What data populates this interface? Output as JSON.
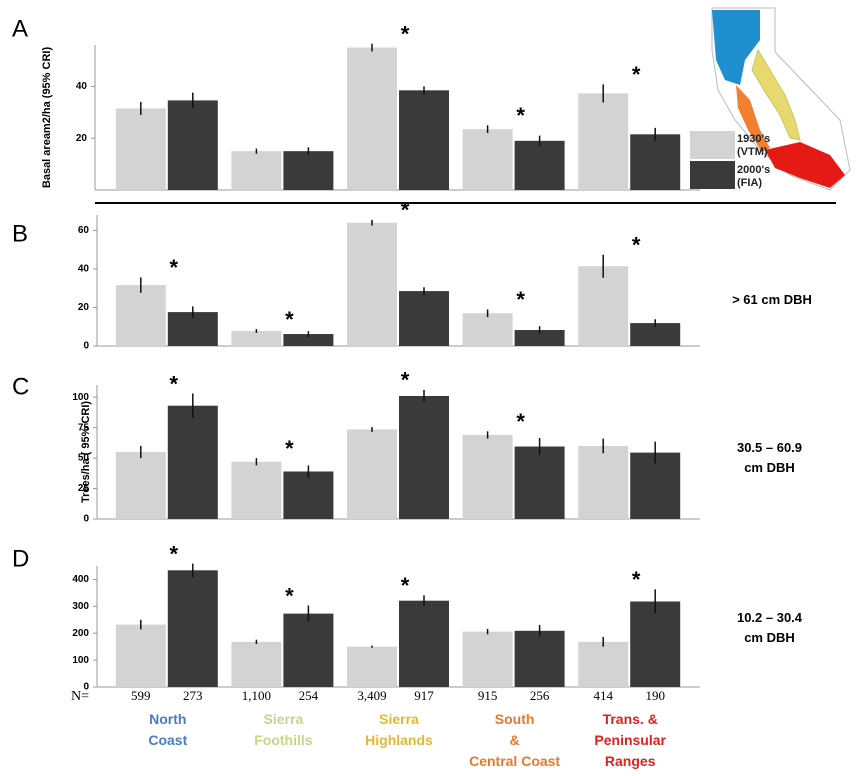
{
  "chart_data": [
    {
      "type": "bar",
      "panel": "A",
      "ylabel": "Basal aream2/ha (95% CRI)",
      "ylim": [
        0,
        56
      ],
      "yticks": [
        20,
        40
      ],
      "grid": false,
      "series": [
        {
          "name": "1930's (VTM)",
          "color": "#d3d3d3",
          "values": [
            31.5,
            15,
            55,
            23.5,
            37.3
          ],
          "errors": [
            2.5,
            1,
            1.5,
            1.5,
            3.5
          ]
        },
        {
          "name": "2000's (FIA)",
          "color": "#3a3a3a",
          "values": [
            34.6,
            15,
            38.5,
            19,
            21.5
          ],
          "errors": [
            3,
            1.5,
            1.5,
            2,
            2.5
          ]
        }
      ],
      "significance": [
        null,
        null,
        "*",
        "*",
        "*"
      ]
    },
    {
      "type": "bar",
      "panel": "B",
      "side_label": "> 61 cm DBH",
      "ylim": [
        0,
        68
      ],
      "yticks": [
        0,
        20,
        40,
        60
      ],
      "grid": false,
      "series": [
        {
          "color": "#d3d3d3",
          "values": [
            31.6,
            7.8,
            64,
            17,
            41.4
          ],
          "errors": [
            4,
            1,
            1.5,
            2,
            6
          ]
        },
        {
          "color": "#3a3a3a",
          "values": [
            17.6,
            6.2,
            28.5,
            8.3,
            11.9
          ],
          "errors": [
            3,
            1.5,
            2,
            2,
            2
          ]
        }
      ],
      "significance": [
        "*",
        "*",
        "*",
        "*",
        "*"
      ]
    },
    {
      "type": "bar",
      "panel": "C",
      "ylabel": "Trees/ha ( 95% CRI)",
      "side_label": "30.5 – 60.9 cm DBH",
      "ylim": [
        0,
        110
      ],
      "yticks": [
        0,
        25,
        50,
        75,
        100
      ],
      "grid": false,
      "series": [
        {
          "color": "#d3d3d3",
          "values": [
            55,
            47,
            73.5,
            69,
            60
          ],
          "errors": [
            5,
            3,
            2,
            3,
            6
          ]
        },
        {
          "color": "#3a3a3a",
          "values": [
            93,
            39,
            101,
            59.5,
            54.5
          ],
          "errors": [
            10,
            5,
            5,
            7,
            9
          ]
        }
      ],
      "significance": [
        "*",
        "*",
        "*",
        "*",
        null
      ]
    },
    {
      "type": "bar",
      "panel": "D",
      "side_label": "10.2 – 30.4 cm DBH",
      "ylim": [
        0,
        450
      ],
      "yticks": [
        0,
        100,
        200,
        300,
        400
      ],
      "grid": false,
      "categories": [
        [
          "North",
          "Coast"
        ],
        [
          "Sierra",
          "Foothills"
        ],
        [
          "Sierra",
          "Highlands"
        ],
        [
          "South",
          "&",
          "Central Coast"
        ],
        [
          "Trans. &",
          "Peninsular",
          "Ranges"
        ]
      ],
      "category_colors": [
        "#4a7cc4",
        "#c3d68a",
        "#e8b632",
        "#e8782c",
        "#e0201c"
      ],
      "n_label": "N=",
      "n_counts": [
        [
          "599",
          "273"
        ],
        [
          "1,100",
          "254"
        ],
        [
          "3,409",
          "917"
        ],
        [
          "915",
          "256"
        ],
        [
          "414",
          "190"
        ]
      ],
      "series": [
        {
          "color": "#d3d3d3",
          "values": [
            232,
            168,
            150,
            206,
            168
          ],
          "errors": [
            18,
            8,
            4,
            10,
            18
          ]
        },
        {
          "color": "#3a3a3a",
          "values": [
            434,
            273,
            321,
            209,
            318
          ],
          "errors": [
            25,
            30,
            20,
            22,
            45
          ]
        }
      ],
      "significance": [
        "*",
        "*",
        "*",
        null,
        "*"
      ]
    }
  ]
}
